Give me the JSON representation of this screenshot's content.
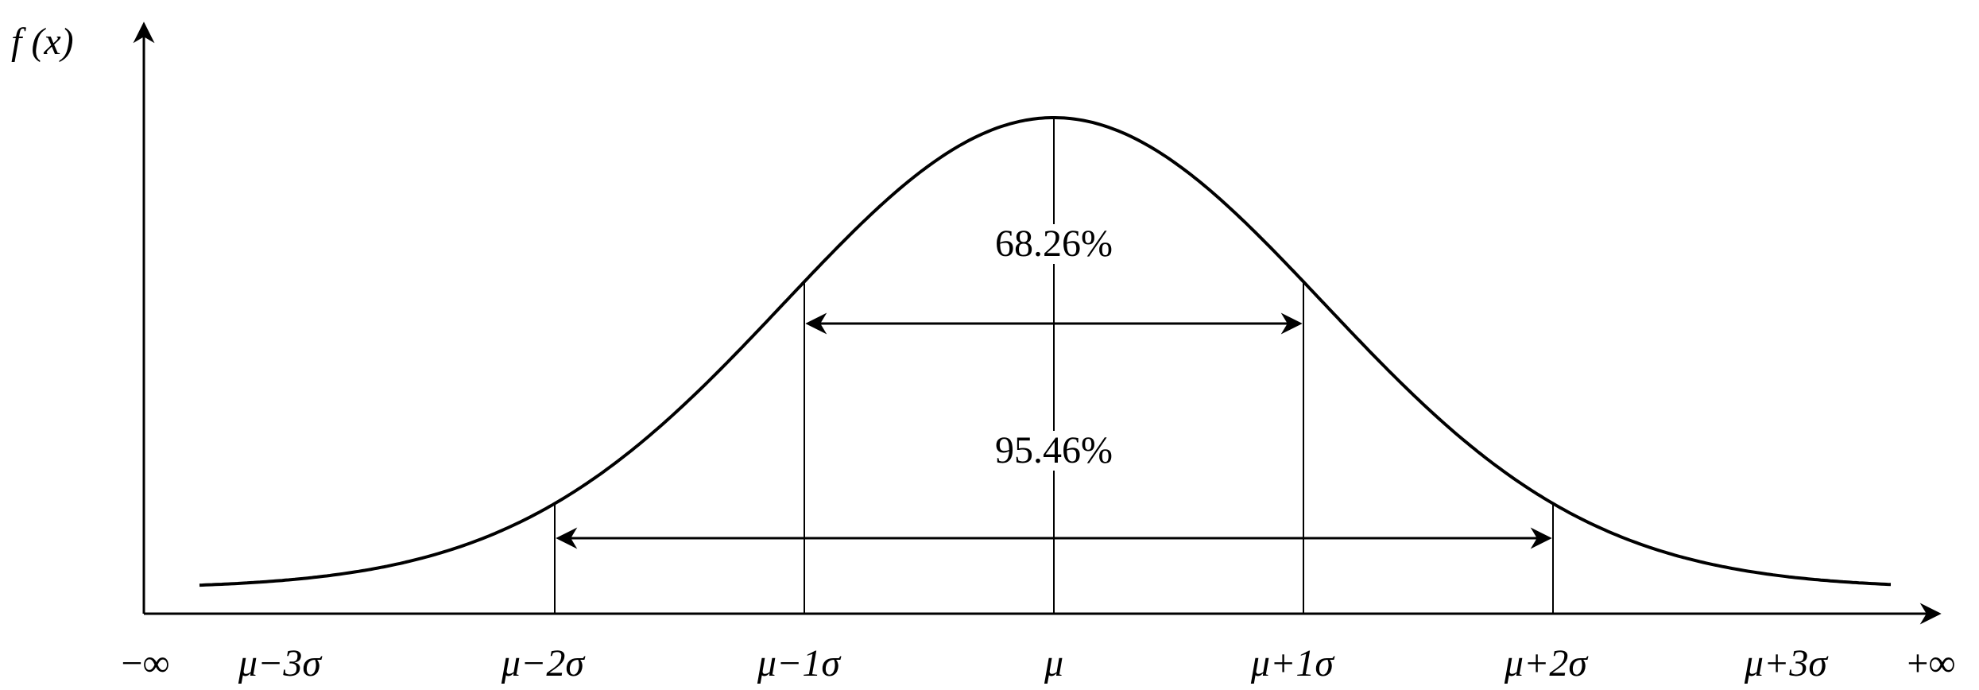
{
  "chart_data": {
    "type": "line",
    "title": "",
    "ylabel": "f (x)",
    "xlabel": "",
    "curve": "normal distribution density",
    "x_tick_labels": [
      "−∞",
      "μ−3σ",
      "μ−2σ",
      "μ−1σ",
      "μ",
      "μ+1σ",
      "μ+2σ",
      "μ+3σ",
      "+∞"
    ],
    "x_tick_values_sigma": [
      null,
      -3,
      -2,
      -1,
      0,
      1,
      2,
      3,
      null
    ],
    "vertical_lines_sigma": [
      -2,
      -1,
      0,
      1,
      2
    ],
    "intervals": [
      {
        "label": "68.26%",
        "from_sigma": -1,
        "to_sigma": 1
      },
      {
        "label": "95.46%",
        "from_sigma": -2,
        "to_sigma": 2
      }
    ],
    "grid": false,
    "colors": {
      "ink": "#000000",
      "background": "#ffffff"
    }
  }
}
